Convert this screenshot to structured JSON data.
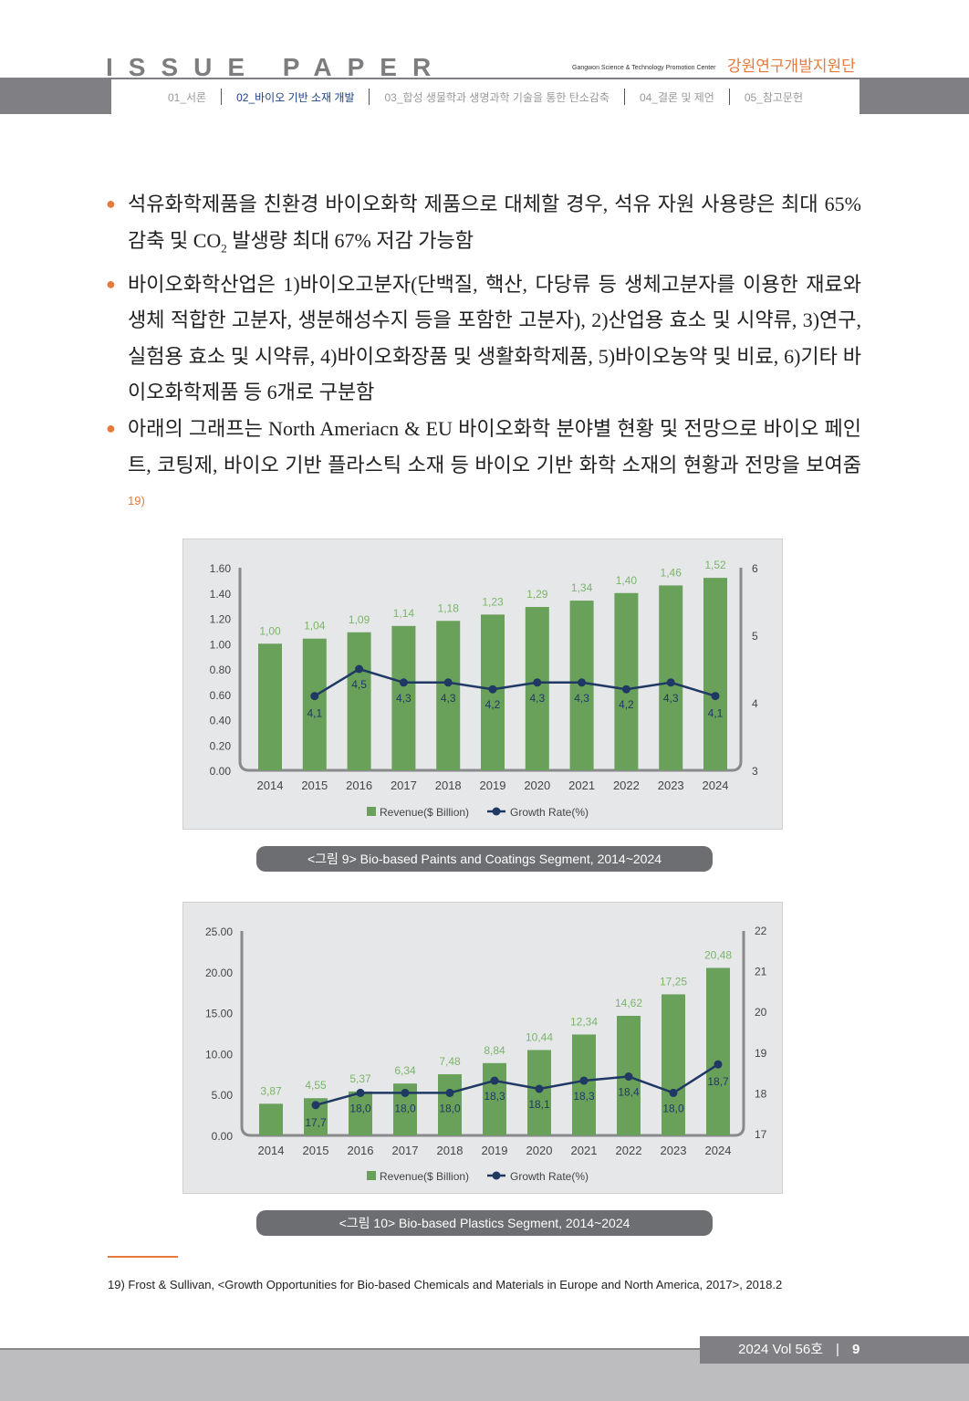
{
  "header": {
    "brand": "ISSUE PAPER",
    "org_en": "Gangwon Science & Technology Promotion Center",
    "org_kr": "강원연구개발지원단",
    "nav": [
      {
        "label": "01_서론"
      },
      {
        "label": "02_바이오 기반 소재 개발"
      },
      {
        "label": "03_합성 생물학과 생명과학 기술을 통한 탄소감축"
      },
      {
        "label": "04_결론 및 제언"
      },
      {
        "label": "05_참고문헌"
      }
    ],
    "active_index": 1
  },
  "body": {
    "bullets": [
      {
        "pre": "석유화학제품을 친환경 바이오화학 제품으로 대체할 경우, 석유 자원 사용량은 최대 65% 감축 및 CO",
        "sub": "2",
        "post": " 발생량 최대 67% 저감 가능함"
      },
      {
        "text": "바이오화학산업은 1)바이오고분자(단백질, 핵산, 다당류 등 생체고분자를 이용한 재료와 생체 적합한 고분자, 생분해성수지 등을 포함한 고분자), 2)산업용 효소 및 시약류, 3)연구, 실험용 효소 및 시약류, 4)바이오화장품 및 생활화학제품, 5)바이오농약 및 비료, 6)기타 바이오화학제품 등 6개로 구분함"
      },
      {
        "text": "아래의 그래프는 North Ameriacn & EU 바이오화학 분야별 현황 및 전망으로 바이오 페인트, 코팅제, 바이오 기반 플라스틱 소재 등 바이오 기반 화학 소재의 현황과 전망을 보여줌",
        "ref": "19)"
      }
    ]
  },
  "chart_data": [
    {
      "type": "bar+line",
      "caption": "<그림 9> Bio-based Paints and Coatings Segment, 2014~2024",
      "categories": [
        "2014",
        "2015",
        "2016",
        "2017",
        "2018",
        "2019",
        "2020",
        "2021",
        "2022",
        "2023",
        "2024"
      ],
      "series": [
        {
          "name": "Revenue($ Billion)",
          "type": "bar",
          "axis": "left",
          "values": [
            1.0,
            1.04,
            1.09,
            1.14,
            1.18,
            1.23,
            1.29,
            1.34,
            1.4,
            1.46,
            1.52
          ]
        },
        {
          "name": "Growth Rate(%)",
          "type": "line",
          "axis": "right",
          "values": [
            null,
            4.1,
            4.5,
            4.3,
            4.3,
            4.2,
            4.3,
            4.3,
            4.2,
            4.3,
            4.1
          ]
        }
      ],
      "ylim": [
        0,
        1.6
      ],
      "yticks": [
        "0.00",
        "0.20",
        "0.40",
        "0.60",
        "0.80",
        "1.00",
        "1.20",
        "1.40",
        "1.60"
      ],
      "y2lim": [
        3,
        6
      ],
      "y2ticks": [
        "3",
        "4",
        "5",
        "6"
      ],
      "legend": "bottom"
    },
    {
      "type": "bar+line",
      "caption": "<그림 10> Bio-based Plastics Segment, 2014~2024",
      "categories": [
        "2014",
        "2015",
        "2016",
        "2017",
        "2018",
        "2019",
        "2020",
        "2021",
        "2022",
        "2023",
        "2024"
      ],
      "series": [
        {
          "name": "Revenue($ Billion)",
          "type": "bar",
          "axis": "left",
          "values": [
            3.87,
            4.55,
            5.37,
            6.34,
            7.48,
            8.84,
            10.44,
            12.34,
            14.62,
            17.25,
            20.48
          ]
        },
        {
          "name": "Growth Rate(%)",
          "type": "line",
          "axis": "right",
          "values": [
            null,
            17.7,
            18.0,
            18.0,
            18.0,
            18.3,
            18.1,
            18.3,
            18.4,
            18.0,
            18.7
          ]
        }
      ],
      "ylim": [
        0,
        25
      ],
      "yticks": [
        "0.00",
        "5.00",
        "10.00",
        "15.00",
        "20.00",
        "25.00"
      ],
      "y2lim": [
        17,
        22
      ],
      "y2ticks": [
        "17",
        "18",
        "19",
        "20",
        "21",
        "22"
      ],
      "legend": "bottom"
    }
  ],
  "footnote": "19)  Frost & Sullivan, <Growth Opportunities for Bio-based Chemicals and Materials in Europe and North America, 2017>, 2018.2",
  "footer": {
    "issue": "2024 Vol 56호",
    "page": "9"
  },
  "colors": {
    "accent": "#e67a3c",
    "bar": "#6aa15a",
    "line": "#1f3864"
  }
}
